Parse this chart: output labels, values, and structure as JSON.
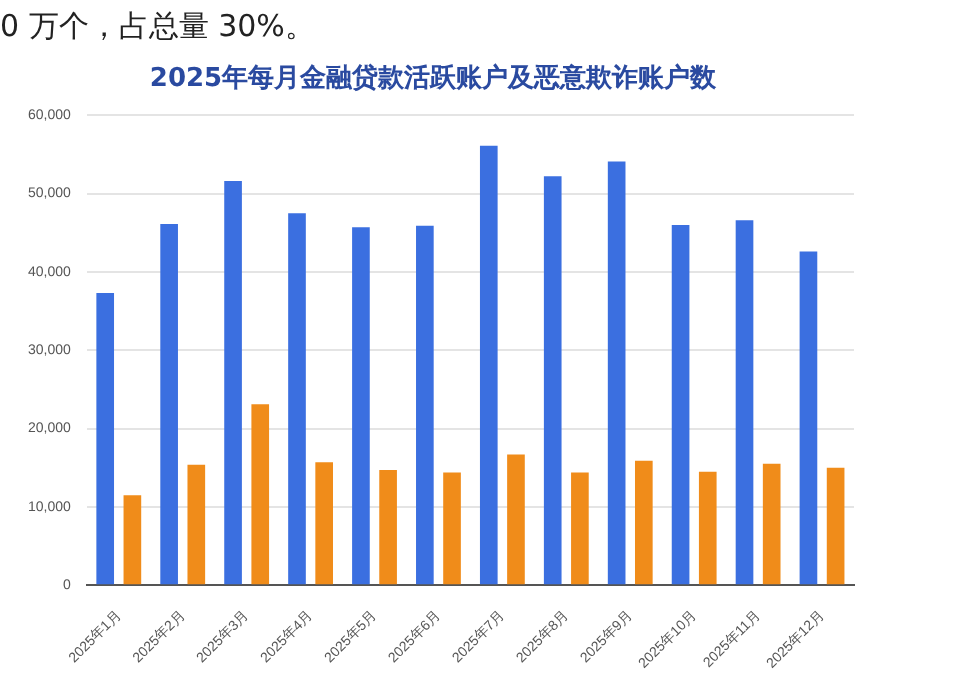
{
  "chart_data": {
    "type": "bar",
    "title": "2025年每月金融贷款活跃账户及恶意欺诈账户数",
    "annotations": [
      "0 万个，占总量 30%。"
    ],
    "categories": [
      "2025年1月",
      "2025年2月",
      "2025年3月",
      "2025年4月",
      "2025年5月",
      "2025年6月",
      "2025年7月",
      "2025年8月",
      "2025年9月",
      "2025年10月",
      "2025年11月",
      "2025年12月"
    ],
    "series": [
      {
        "color": "#3b6fe0",
        "values": [
          37300,
          46100,
          51600,
          47500,
          45700,
          45900,
          56100,
          52200,
          54100,
          46000,
          46600,
          42600
        ]
      },
      {
        "color": "#f08c1a",
        "values": [
          11500,
          15400,
          23100,
          15700,
          14700,
          14400,
          16700,
          14400,
          15900,
          14500,
          15500,
          15000
        ]
      }
    ],
    "ylim": [
      0,
      60000
    ],
    "yticks": [
      0,
      {
        "value": 10000,
        "label": "10,000"
      },
      {
        "value": 20000,
        "label": "20,000"
      },
      {
        "value": 30000,
        "label": "30,000"
      },
      {
        "value": 40000,
        "label": "40,000"
      },
      {
        "value": 50000,
        "label": "50,000"
      },
      {
        "value": 60000,
        "label": "60,000"
      }
    ],
    "grid": "y",
    "legend": false
  }
}
